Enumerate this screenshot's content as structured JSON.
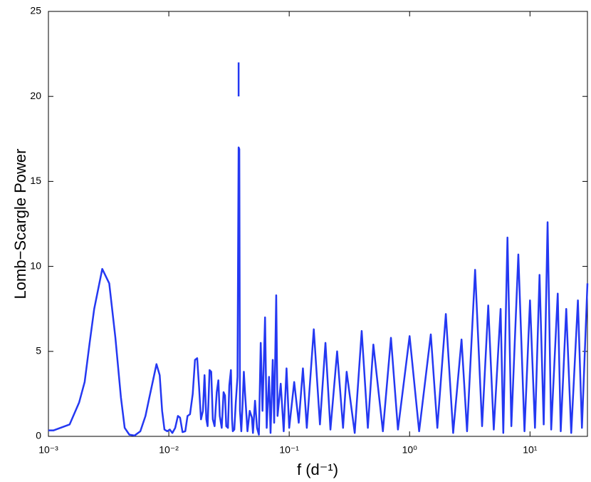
{
  "chart_data": {
    "type": "line",
    "xlabel": "f (d⁻¹)",
    "ylabel": "Lomb−Scargle Power",
    "xlog": true,
    "xlim": [
      0.001,
      30
    ],
    "xticks": [
      {
        "value": 0.001,
        "label": "10⁻³"
      },
      {
        "value": 0.01,
        "label": "10⁻²"
      },
      {
        "value": 0.1,
        "label": "10⁻¹"
      },
      {
        "value": 1,
        "label": "10⁰"
      },
      {
        "value": 10,
        "label": "10¹"
      }
    ],
    "ylim": [
      0,
      25
    ],
    "yticks": [
      0,
      5,
      10,
      15,
      20,
      25
    ],
    "series": [
      {
        "color": "#2438f2",
        "x": [
          0.001,
          0.0011,
          0.0015,
          0.0018,
          0.002,
          0.0022,
          0.0024,
          0.0028,
          0.0032,
          0.0036,
          0.004,
          0.0043,
          0.0047,
          0.0052,
          0.0058,
          0.0064,
          0.0069,
          0.0075,
          0.0079,
          0.0084,
          0.0088,
          0.0092,
          0.0097,
          0.0102,
          0.0107,
          0.0113,
          0.0119,
          0.0124,
          0.013,
          0.0137,
          0.0143,
          0.015,
          0.0158,
          0.0165,
          0.0172,
          0.0178,
          0.0185,
          0.0192,
          0.0198,
          0.0205,
          0.021,
          0.0218,
          0.0225,
          0.0232,
          0.024,
          0.025,
          0.0258,
          0.0265,
          0.0275,
          0.0285,
          0.0293,
          0.03,
          0.031,
          0.0318,
          0.0328,
          0.0335,
          0.034,
          0.035,
          0.036,
          0.0372,
          0.038,
          0.0385,
          0.039,
          0.04,
          0.041,
          0.042,
          0.043,
          0.045,
          0.047,
          0.049,
          0.05,
          0.052,
          0.054,
          0.056,
          0.058,
          0.06,
          0.063,
          0.065,
          0.068,
          0.07,
          0.073,
          0.075,
          0.078,
          0.08,
          0.085,
          0.09,
          0.095,
          0.1,
          0.11,
          0.12,
          0.13,
          0.14,
          0.16,
          0.18,
          0.2,
          0.22,
          0.25,
          0.28,
          0.3,
          0.35,
          0.4,
          0.45,
          0.5,
          0.6,
          0.7,
          0.8,
          1.0,
          1.2,
          1.5,
          1.7,
          2.0,
          2.3,
          2.7,
          3.0,
          3.5,
          4.0,
          4.5,
          5.0,
          5.7,
          6.0,
          6.5,
          7.0,
          8.0,
          9.0,
          10,
          11,
          12,
          13,
          14,
          15,
          17,
          18,
          20,
          22,
          25,
          27,
          30
        ],
        "values": [
          0.35,
          0.35,
          0.7,
          2.0,
          3.2,
          5.5,
          7.5,
          9.85,
          9.0,
          5.8,
          2.3,
          0.5,
          0.1,
          0.05,
          0.3,
          1.2,
          2.3,
          3.5,
          4.25,
          3.6,
          1.5,
          0.4,
          0.3,
          0.4,
          0.2,
          0.5,
          1.2,
          1.1,
          0.25,
          0.3,
          1.2,
          1.3,
          2.5,
          4.5,
          4.6,
          3.0,
          1.0,
          1.5,
          3.6,
          1.0,
          0.6,
          3.9,
          3.8,
          1.0,
          0.6,
          2.6,
          3.3,
          1.2,
          0.5,
          2.6,
          2.4,
          0.6,
          0.5,
          3.0,
          3.9,
          1.0,
          0.3,
          0.4,
          2.0,
          3.5,
          17.0,
          16.9,
          1.5,
          0.3,
          1.9,
          3.8,
          2.5,
          0.3,
          1.5,
          1.1,
          0.2,
          2.1,
          0.5,
          0.1,
          5.5,
          1.5,
          7.0,
          0.5,
          3.5,
          0.2,
          4.5,
          0.8,
          8.3,
          1.2,
          3.1,
          0.3,
          4.0,
          0.5,
          3.2,
          0.8,
          4.0,
          0.5,
          6.3,
          0.7,
          5.5,
          0.4,
          5.0,
          0.5,
          3.8,
          0.2,
          6.2,
          0.5,
          5.4,
          0.3,
          5.8,
          0.4,
          5.9,
          0.3,
          6.0,
          0.5,
          7.2,
          0.2,
          5.7,
          0.3,
          9.8,
          0.6,
          7.7,
          0.4,
          7.5,
          0.2,
          11.7,
          0.6,
          10.7,
          0.3,
          8.0,
          0.5,
          9.5,
          0.7,
          12.6,
          0.4,
          8.4,
          0.3,
          7.5,
          0.2,
          8.0,
          0.5,
          9.0
        ]
      },
      {
        "color": "#2438f2",
        "x": [
          0.038,
          0.038
        ],
        "values": [
          20,
          22
        ]
      }
    ]
  }
}
